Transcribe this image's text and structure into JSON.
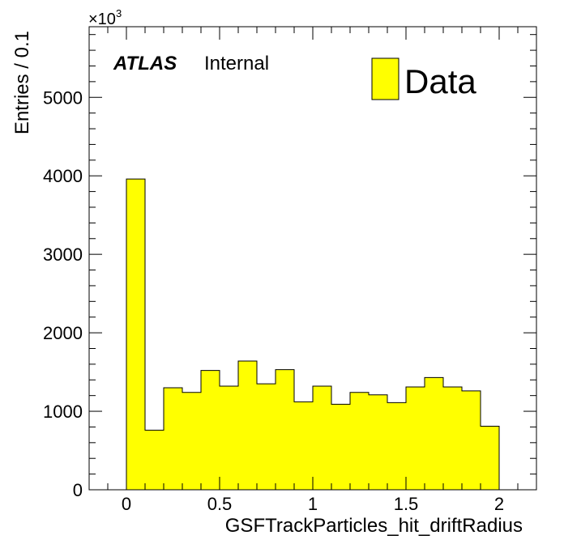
{
  "chart_data": {
    "type": "bar",
    "title": "",
    "xlabel": "GSFTrackParticles_hit_driftRadius",
    "ylabel": "Entries / 0.1",
    "y_multiplier_label": "×10",
    "y_multiplier_exponent": "3",
    "xlim": [
      -0.2,
      2.2
    ],
    "ylim": [
      0,
      5900
    ],
    "x_ticks": [
      0,
      0.5,
      1,
      1.5,
      2
    ],
    "x_tick_labels": [
      "0",
      "0.5",
      "1",
      "1.5",
      "2"
    ],
    "y_ticks": [
      0,
      1000,
      2000,
      3000,
      4000,
      5000
    ],
    "y_tick_labels": [
      "0",
      "1000",
      "2000",
      "3000",
      "4000",
      "5000"
    ],
    "bin_edges": [
      0,
      0.1,
      0.2,
      0.3,
      0.4,
      0.5,
      0.6,
      0.7,
      0.8,
      0.9,
      1.0,
      1.1,
      1.2,
      1.3,
      1.4,
      1.5,
      1.6,
      1.7,
      1.8,
      1.9,
      2.0
    ],
    "series": [
      {
        "name": "Data",
        "color": "#ffff00",
        "values": [
          3960,
          760,
          1300,
          1240,
          1520,
          1320,
          1640,
          1350,
          1530,
          1120,
          1320,
          1090,
          1240,
          1210,
          1110,
          1310,
          1430,
          1310,
          1260,
          810
        ]
      }
    ],
    "legend": {
      "position": "top-right",
      "entries": [
        "Data"
      ]
    },
    "annotations": {
      "atlas": "ATLAS",
      "status": "Internal"
    },
    "grid": false
  }
}
